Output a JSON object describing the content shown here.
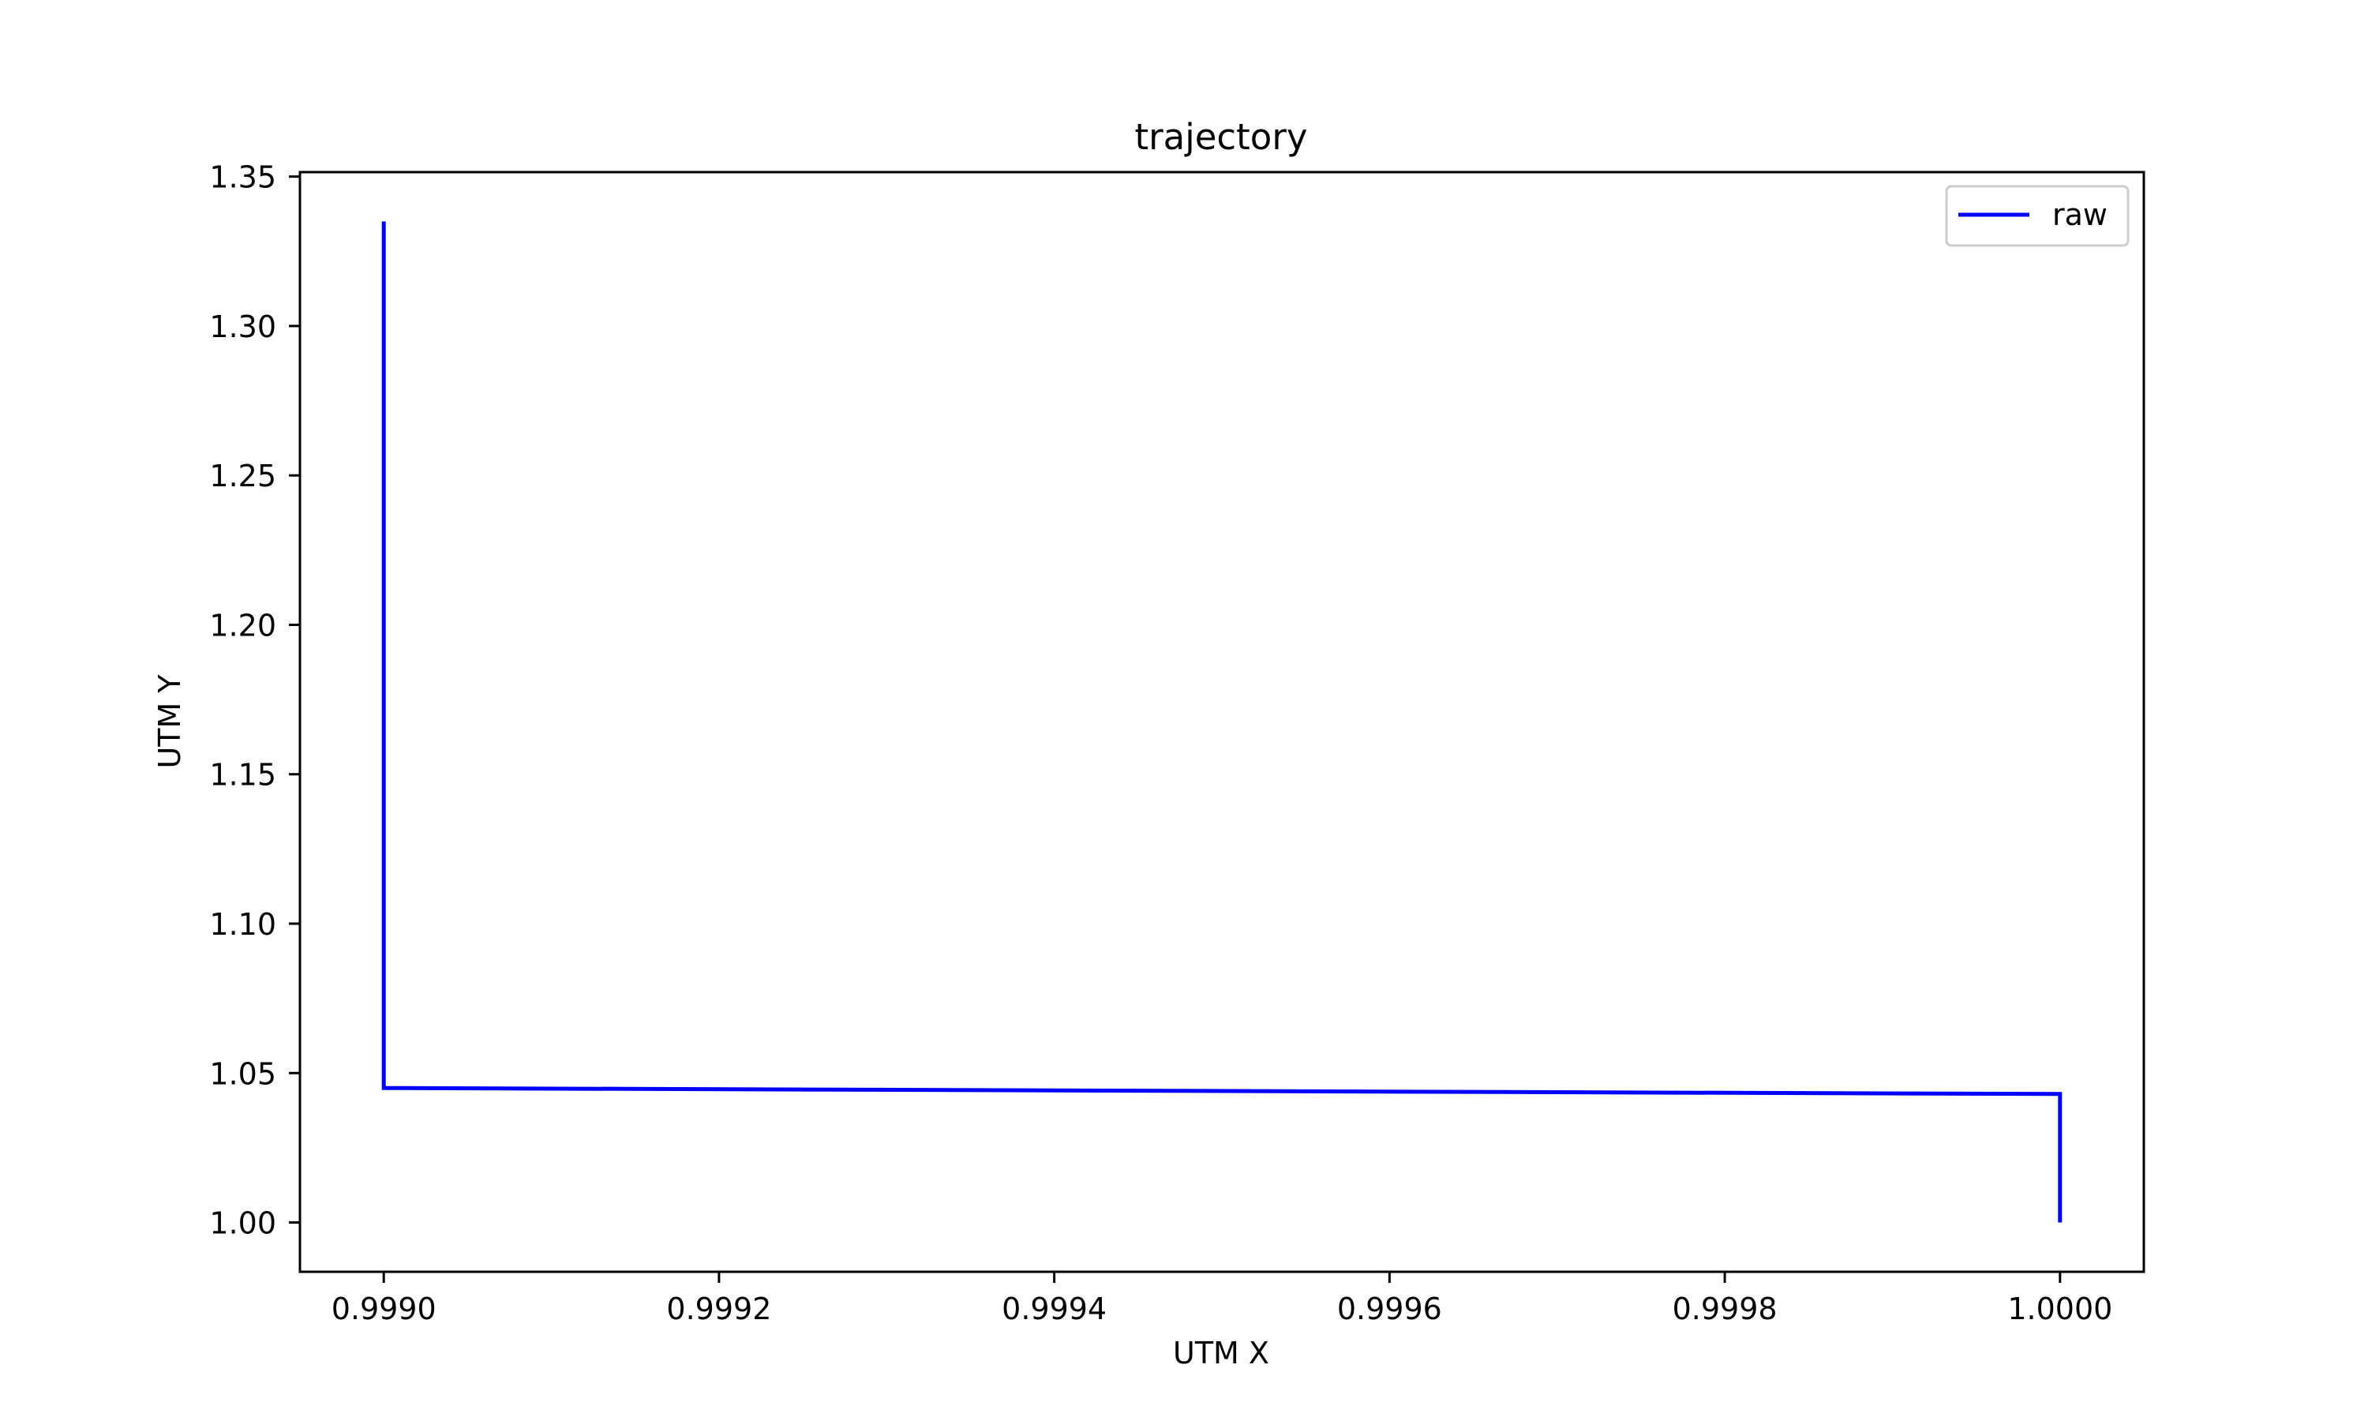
{
  "chart_data": {
    "type": "line",
    "title": "trajectory",
    "xlabel": "UTM X",
    "ylabel": "UTM Y",
    "xlim": [
      0.99895,
      1.00005
    ],
    "ylim": [
      0.9835,
      1.3515
    ],
    "xticks": [
      0.999,
      0.9992,
      0.9994,
      0.9996,
      0.9998,
      1.0
    ],
    "xtick_labels": [
      "0.9990",
      "0.9992",
      "0.9994",
      "0.9996",
      "0.9998",
      "1.0000"
    ],
    "yticks": [
      1.0,
      1.05,
      1.1,
      1.15,
      1.2,
      1.25,
      1.3,
      1.35
    ],
    "ytick_labels": [
      "1.00",
      "1.05",
      "1.10",
      "1.15",
      "1.20",
      "1.25",
      "1.30",
      "1.35"
    ],
    "grid": false,
    "legend_position": "top-right",
    "series": [
      {
        "name": "raw",
        "color": "#0000ff",
        "x": [
          1.0,
          1.0,
          0.999,
          0.999
        ],
        "y": [
          1.0,
          1.043,
          1.045,
          1.335
        ]
      }
    ]
  }
}
